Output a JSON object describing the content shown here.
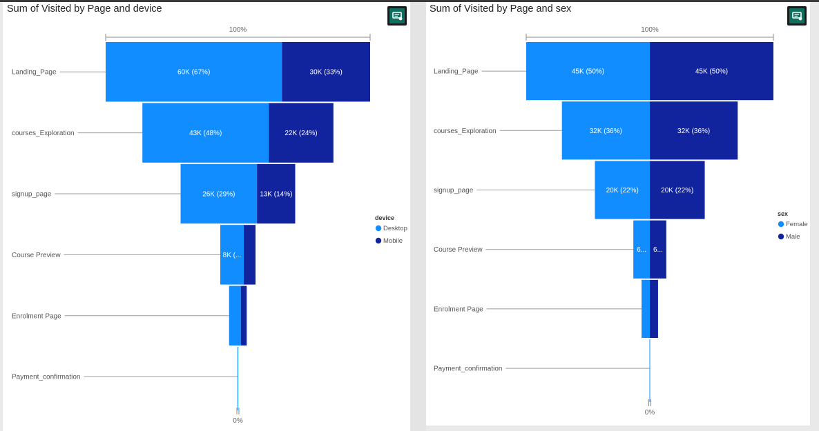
{
  "colors": {
    "primary": "#118dff",
    "secondary": "#12239e"
  },
  "panels": [
    {
      "title": "Sum of Visited by Page and device",
      "badge_icon": "comment-chart-icon",
      "chart_data": {
        "type": "funnel",
        "title": "Sum of Visited by Page and device",
        "categories": [
          "Landing_Page",
          "courses_Exploration",
          "signup_page",
          "Course Preview",
          "Enrolment Page",
          "Payment_confirmation"
        ],
        "series": [
          {
            "name": "Desktop",
            "values": [
              60000,
              43000,
              26000,
              8000,
              4000,
              300
            ]
          },
          {
            "name": "Mobile",
            "values": [
              30000,
              22000,
              13000,
              4000,
              2000,
              0
            ]
          }
        ],
        "bar_labels": [
          [
            "60K (67%)",
            "30K (33%)"
          ],
          [
            "43K (48%)",
            "22K (24%)"
          ],
          [
            "26K (29%)",
            "13K (14%)"
          ],
          [
            "8K (...",
            ""
          ],
          [
            "",
            ""
          ],
          [
            "",
            ""
          ]
        ],
        "top_label": "100%",
        "bottom_label": "0%",
        "legend_title": "device",
        "legend_position": "right"
      }
    },
    {
      "title": "Sum of Visited by Page and sex",
      "badge_icon": "comment-chart-icon",
      "chart_data": {
        "type": "funnel",
        "title": "Sum of Visited by Page and sex",
        "categories": [
          "Landing_Page",
          "courses_Exploration",
          "signup_page",
          "Course Preview",
          "Enrolment Page",
          "Payment_confirmation"
        ],
        "series": [
          {
            "name": "Female",
            "values": [
              45000,
              32000,
              20000,
              6000,
              3000,
              100
            ]
          },
          {
            "name": "Male",
            "values": [
              45000,
              32000,
              20000,
              6000,
              3000,
              100
            ]
          }
        ],
        "bar_labels": [
          [
            "45K (50%)",
            "45K (50%)"
          ],
          [
            "32K (36%)",
            "32K (36%)"
          ],
          [
            "20K (22%)",
            "20K (22%)"
          ],
          [
            "6...",
            "6..."
          ],
          [
            "",
            ""
          ],
          [
            "",
            ""
          ]
        ],
        "top_label": "100%",
        "bottom_label": "0%",
        "legend_title": "sex",
        "legend_position": "right"
      }
    }
  ]
}
